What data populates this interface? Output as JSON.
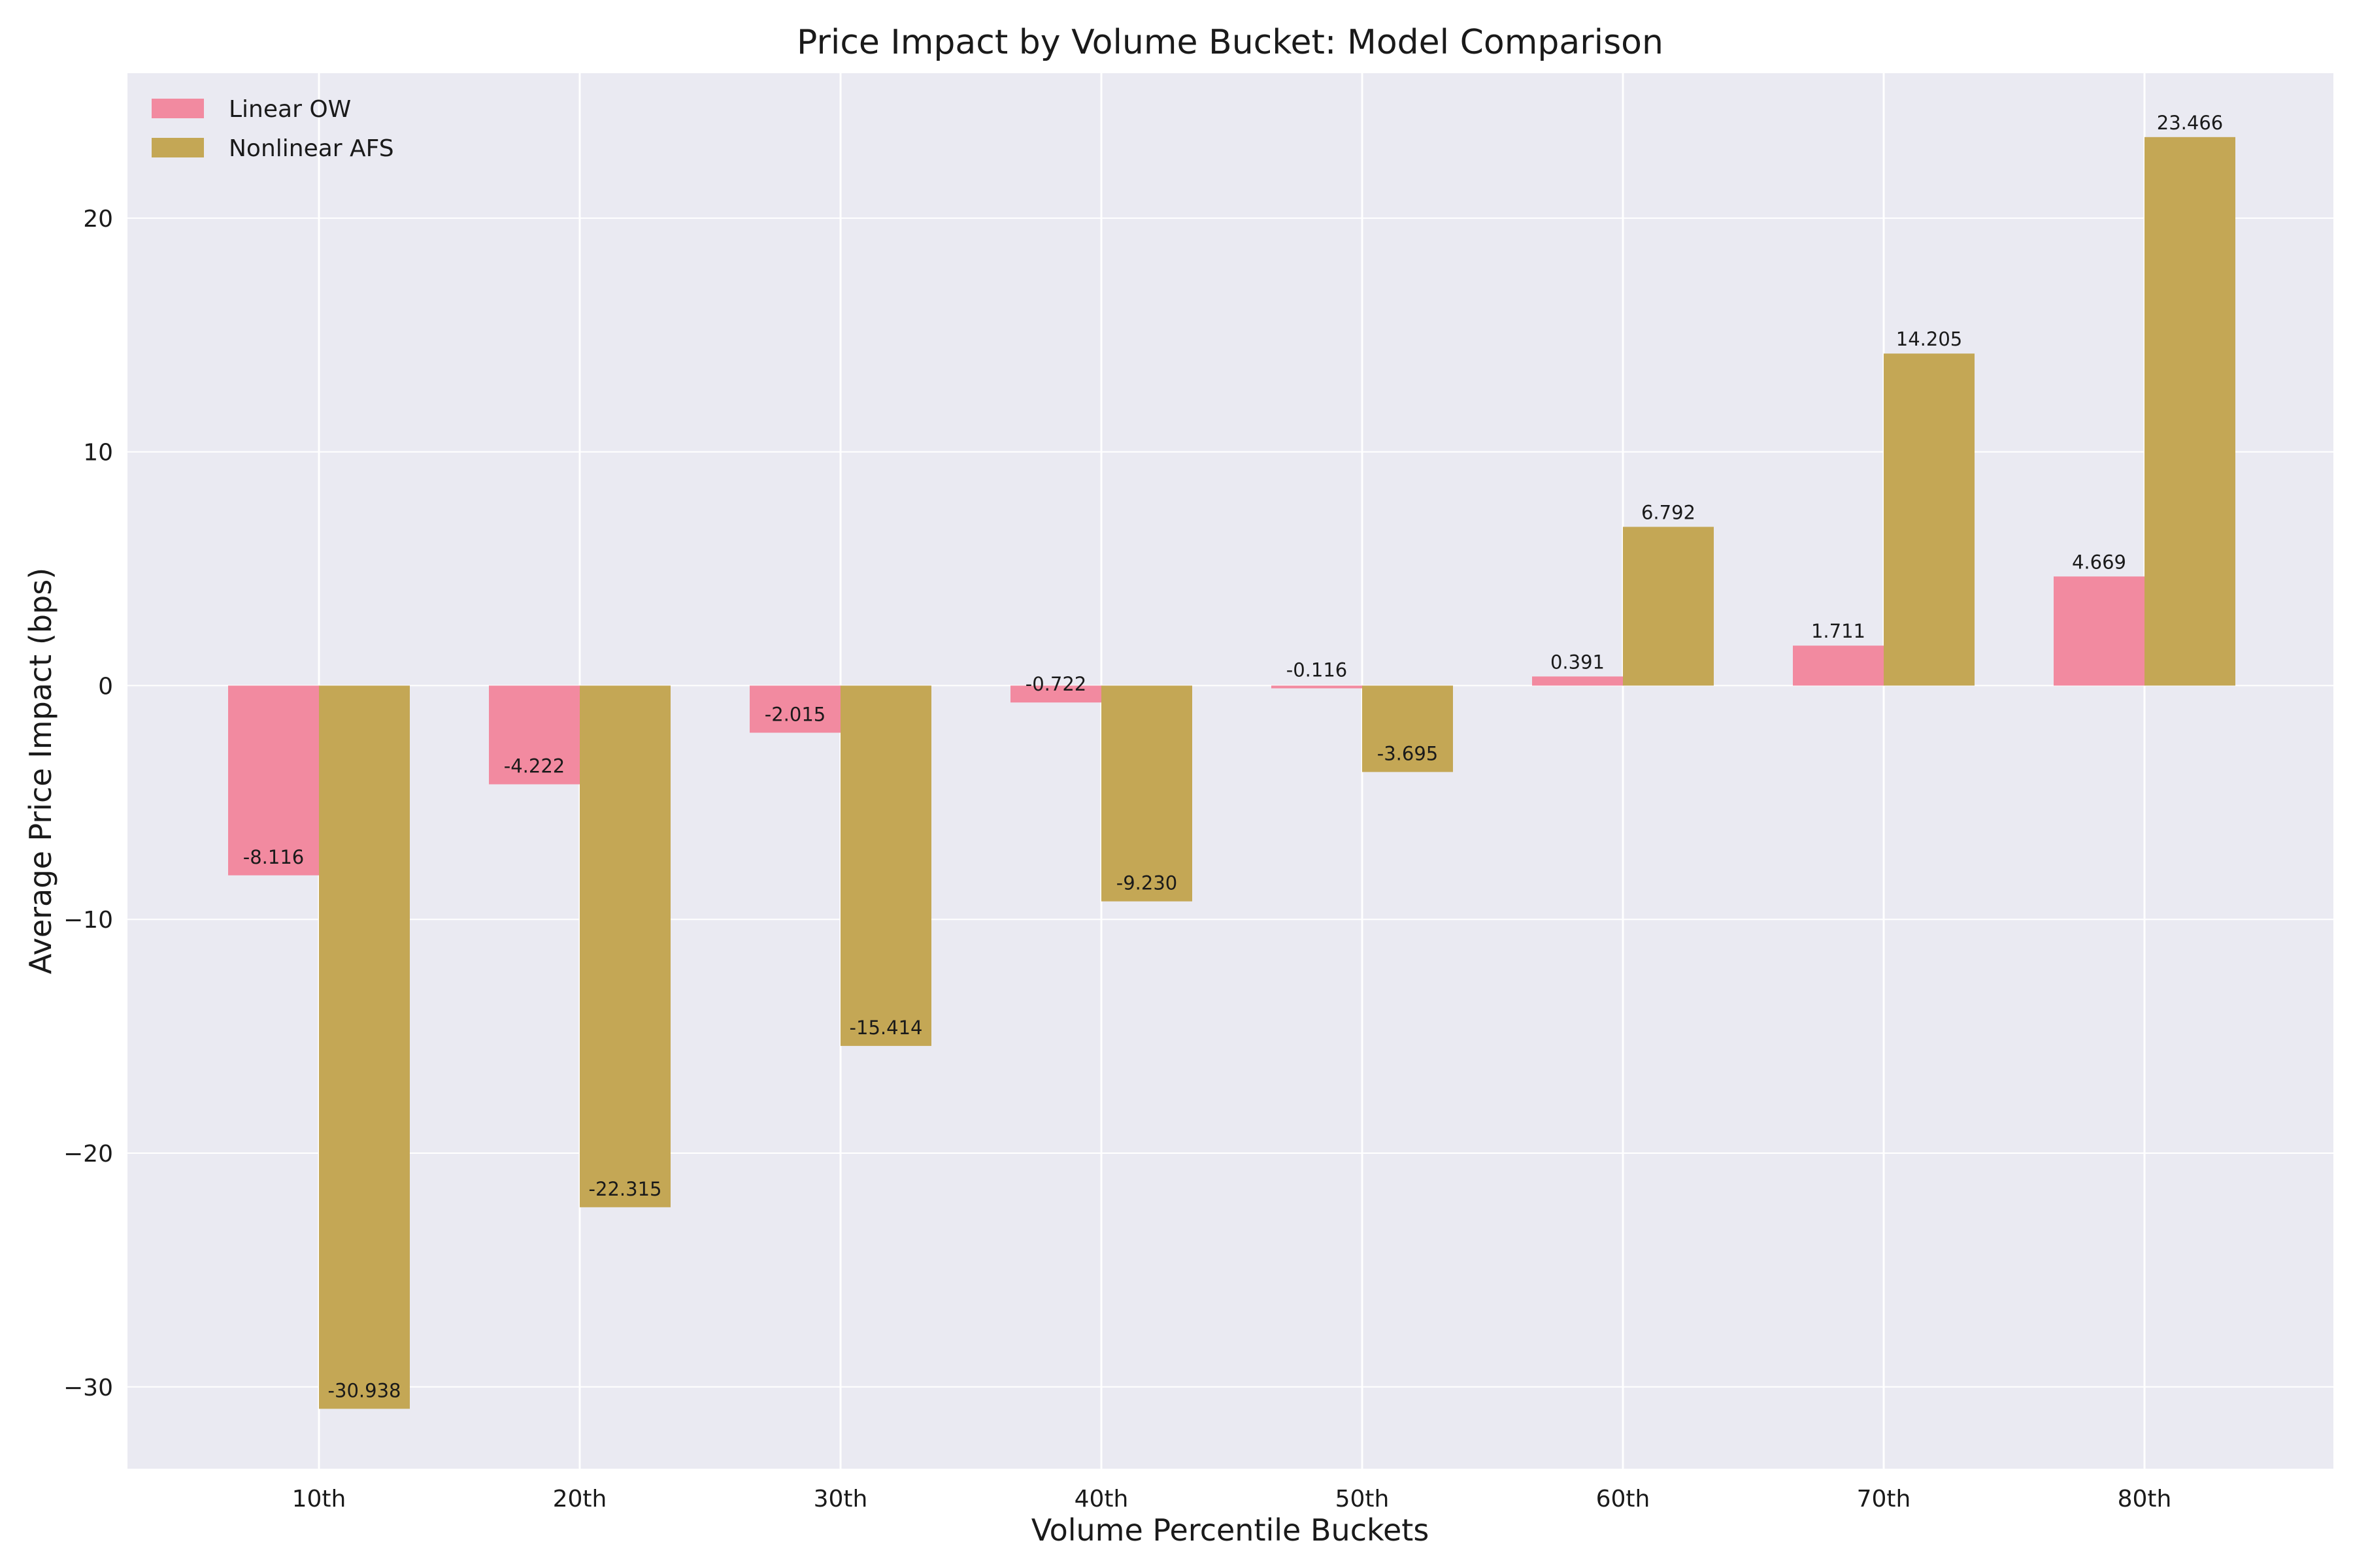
{
  "chart_data": {
    "type": "bar",
    "title": "Price Impact by Volume Bucket: Model Comparison",
    "xlabel": "Volume Percentile Buckets",
    "ylabel": "Average Price Impact (bps)",
    "categories": [
      "10th",
      "20th",
      "30th",
      "40th",
      "50th",
      "60th",
      "70th",
      "80th"
    ],
    "series": [
      {
        "name": "Linear OW",
        "color": "#f28aa0",
        "values": [
          -8.116,
          -4.222,
          -2.015,
          -0.722,
          -0.116,
          0.391,
          1.711,
          4.669
        ],
        "labels": [
          "-8.116",
          "-4.222",
          "-2.015",
          "-0.722",
          "-0.116",
          "0.391",
          "1.711",
          "4.669"
        ]
      },
      {
        "name": "Nonlinear AFS",
        "color": "#c4a755",
        "values": [
          -30.938,
          -22.315,
          -15.414,
          -9.23,
          -3.695,
          6.792,
          14.205,
          23.466
        ],
        "labels": [
          "-30.938",
          "-22.315",
          "-15.414",
          "-9.230",
          "-3.695",
          "6.792",
          "14.205",
          "23.466"
        ]
      }
    ],
    "ylim": [
      -33.5,
      26.2
    ],
    "yticks": [
      -30,
      -20,
      -10,
      0,
      10,
      20
    ],
    "ytick_labels": [
      "−30",
      "−20",
      "−10",
      "0",
      "10",
      "20"
    ],
    "grid": true,
    "legend_position": "top-left",
    "background": "#eaeaf2"
  }
}
